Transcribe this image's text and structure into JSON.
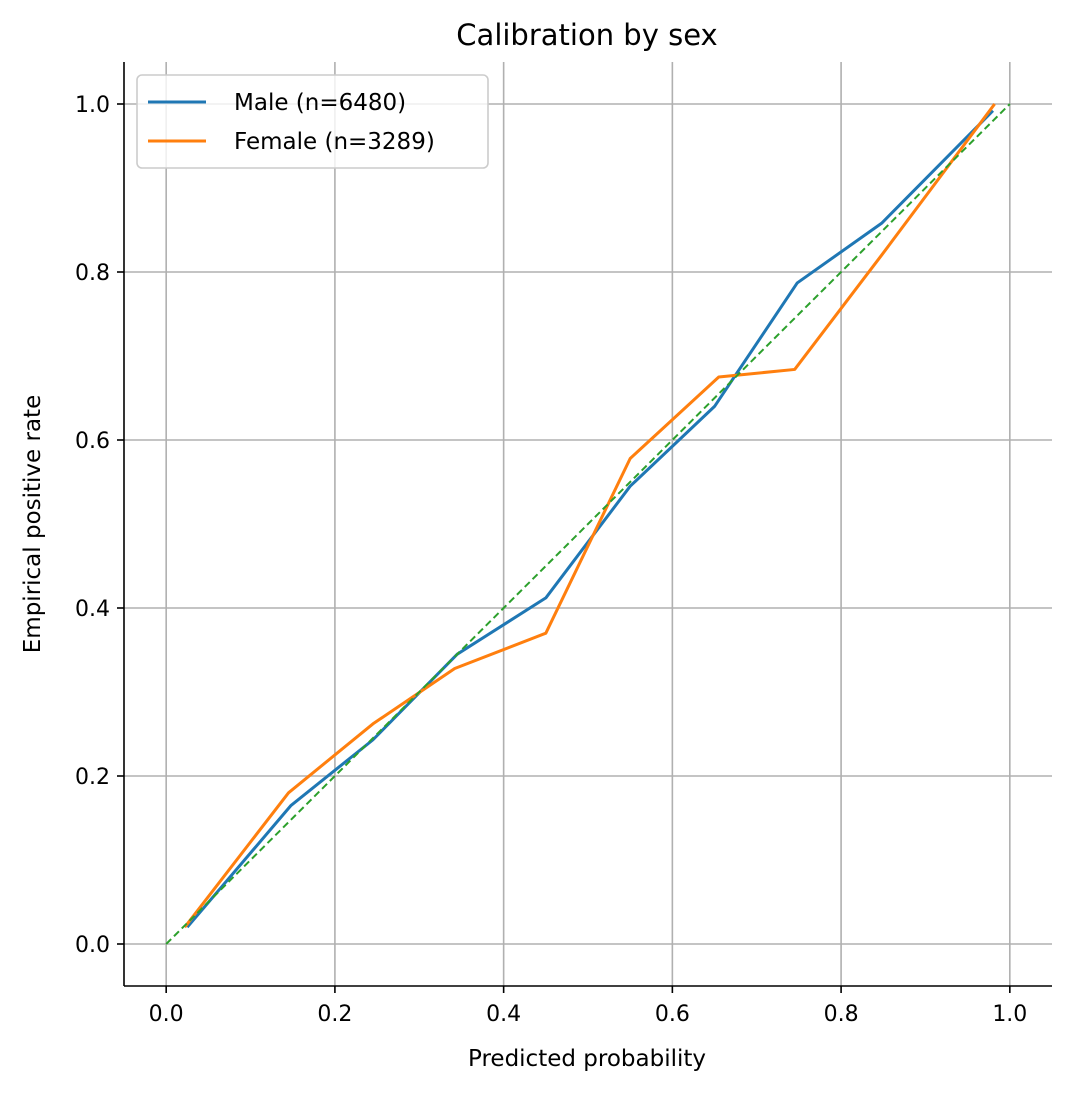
{
  "chart_data": {
    "type": "line",
    "title": "Calibration by sex",
    "xlabel": "Predicted probability",
    "ylabel": "Empirical positive rate",
    "xlim": [
      -0.05,
      1.05
    ],
    "ylim": [
      -0.05,
      1.05
    ],
    "xticks": [
      0.0,
      0.2,
      0.4,
      0.6,
      0.8,
      1.0
    ],
    "yticks": [
      0.0,
      0.2,
      0.4,
      0.6,
      0.8,
      1.0
    ],
    "xtick_labels": [
      "0.0",
      "0.2",
      "0.4",
      "0.6",
      "0.8",
      "1.0"
    ],
    "ytick_labels": [
      "0.0",
      "0.2",
      "0.4",
      "0.6",
      "0.8",
      "1.0"
    ],
    "grid": true,
    "legend_position": "upper-left",
    "series": [
      {
        "name": "Male (n=6480)",
        "color": "#1f77b4",
        "style": "solid",
        "x": [
          0.025,
          0.148,
          0.245,
          0.345,
          0.45,
          0.55,
          0.65,
          0.748,
          0.848,
          0.98
        ],
        "y": [
          0.02,
          0.165,
          0.243,
          0.345,
          0.412,
          0.545,
          0.64,
          0.787,
          0.858,
          0.992
        ]
      },
      {
        "name": "Female (n=3289)",
        "color": "#ff7f0e",
        "style": "solid",
        "x": [
          0.022,
          0.145,
          0.245,
          0.342,
          0.45,
          0.55,
          0.655,
          0.745,
          0.848,
          0.982
        ],
        "y": [
          0.02,
          0.18,
          0.262,
          0.328,
          0.37,
          0.578,
          0.675,
          0.684,
          0.82,
          1.0
        ]
      },
      {
        "name": "",
        "color": "#2ca02c",
        "style": "dashed",
        "x": [
          0.0,
          1.0
        ],
        "y": [
          0.0,
          1.0
        ]
      }
    ]
  }
}
